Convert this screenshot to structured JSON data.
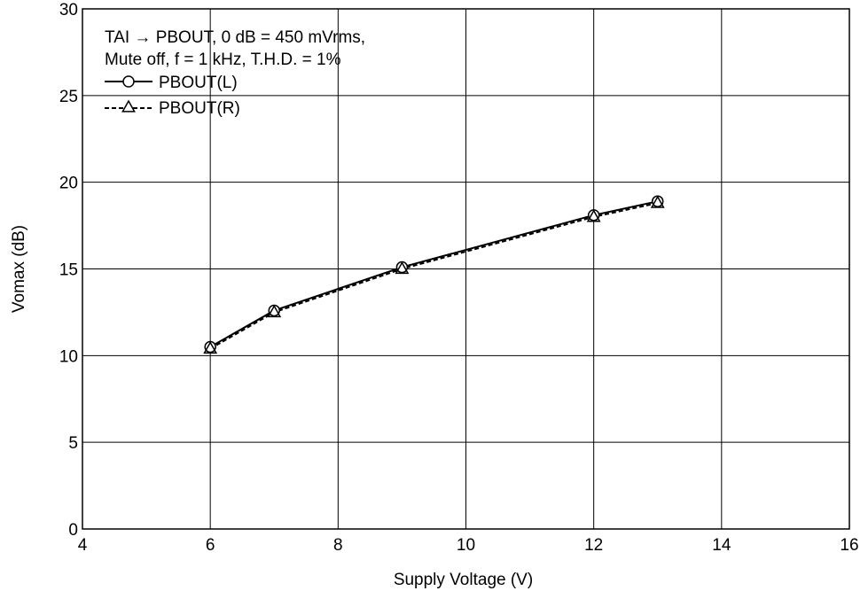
{
  "chart_data": {
    "type": "line",
    "xlabel": "Supply Voltage  (V)",
    "ylabel": "Vomax  (dB)",
    "xlim": [
      4,
      16
    ],
    "ylim": [
      0,
      30
    ],
    "xticks": [
      4,
      6,
      8,
      10,
      12,
      14,
      16
    ],
    "yticks": [
      0,
      5,
      10,
      15,
      20,
      25,
      30
    ],
    "grid": true,
    "legend_placement": "top-left",
    "annotations": [
      "TAI → PBOUT, 0 dB = 450 mVrms,",
      "Mute off, f = 1 kHz, T.H.D. = 1%"
    ],
    "series": [
      {
        "name": "PBOUT(L)",
        "marker": "circle",
        "line": "solid",
        "color": "#000000",
        "x": [
          6,
          7,
          9,
          12,
          13
        ],
        "y": [
          10.5,
          12.6,
          15.1,
          18.1,
          18.9
        ]
      },
      {
        "name": "PBOUT(R)",
        "marker": "triangle",
        "line": "dashed",
        "color": "#000000",
        "x": [
          6,
          7,
          9,
          12,
          13
        ],
        "y": [
          10.4,
          12.5,
          15.0,
          18.0,
          18.8
        ]
      }
    ]
  }
}
